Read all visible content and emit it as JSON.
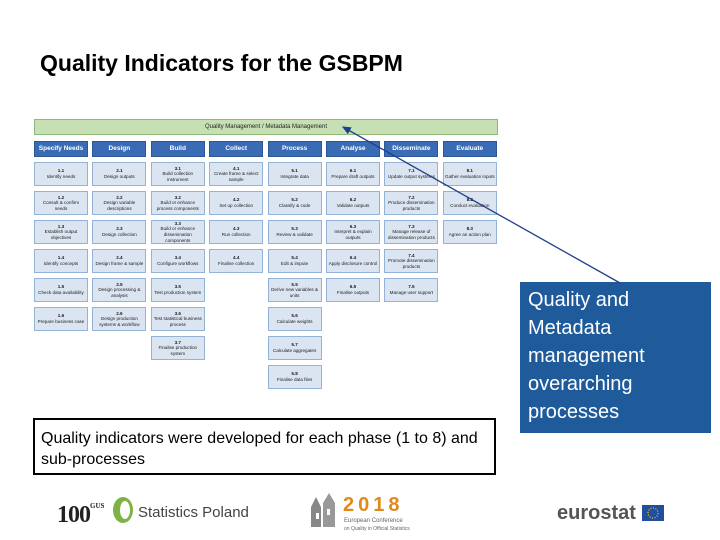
{
  "title": "Quality Indicators for the GSBPM",
  "gsbpm": {
    "overarching_label": "Quality Management / Metadata Management",
    "phases": [
      {
        "name": "Specify Needs",
        "processes": [
          {
            "id": "1.1",
            "label": "Identify needs"
          },
          {
            "id": "1.2",
            "label": "Consult & confirm needs"
          },
          {
            "id": "1.3",
            "label": "Establish output objectives"
          },
          {
            "id": "1.4",
            "label": "Identify concepts"
          },
          {
            "id": "1.5",
            "label": "Check data availability"
          },
          {
            "id": "1.6",
            "label": "Prepare business case"
          }
        ]
      },
      {
        "name": "Design",
        "processes": [
          {
            "id": "2.1",
            "label": "Design outputs"
          },
          {
            "id": "2.2",
            "label": "Design variable descriptions"
          },
          {
            "id": "2.3",
            "label": "Design collection"
          },
          {
            "id": "2.4",
            "label": "Design frame & sample"
          },
          {
            "id": "2.5",
            "label": "Design processing & analysis"
          },
          {
            "id": "2.6",
            "label": "Design production systems & workflow"
          }
        ]
      },
      {
        "name": "Build",
        "processes": [
          {
            "id": "3.1",
            "label": "Build collection instrument"
          },
          {
            "id": "3.2",
            "label": "Build or enhance process components"
          },
          {
            "id": "3.3",
            "label": "Build or enhance dissemination components"
          },
          {
            "id": "3.4",
            "label": "Configure workflows"
          },
          {
            "id": "3.5",
            "label": "Test production system"
          },
          {
            "id": "3.6",
            "label": "Test statistical business process"
          },
          {
            "id": "3.7",
            "label": "Finalise production system"
          }
        ]
      },
      {
        "name": "Collect",
        "processes": [
          {
            "id": "4.1",
            "label": "Create frame & select sample"
          },
          {
            "id": "4.2",
            "label": "Set up collection"
          },
          {
            "id": "4.3",
            "label": "Run collection"
          },
          {
            "id": "4.4",
            "label": "Finalise collection"
          }
        ]
      },
      {
        "name": "Process",
        "processes": [
          {
            "id": "5.1",
            "label": "Integrate data"
          },
          {
            "id": "5.2",
            "label": "Classify & code"
          },
          {
            "id": "5.3",
            "label": "Review & validate"
          },
          {
            "id": "5.4",
            "label": "Edit & impute"
          },
          {
            "id": "5.5",
            "label": "Derive new variables & units"
          },
          {
            "id": "5.6",
            "label": "Calculate weights"
          },
          {
            "id": "5.7",
            "label": "Calculate aggregates"
          },
          {
            "id": "5.8",
            "label": "Finalise data files"
          }
        ]
      },
      {
        "name": "Analyse",
        "processes": [
          {
            "id": "6.1",
            "label": "Prepare draft outputs"
          },
          {
            "id": "6.2",
            "label": "Validate outputs"
          },
          {
            "id": "6.3",
            "label": "Interpret & explain outputs"
          },
          {
            "id": "6.4",
            "label": "Apply disclosure control"
          },
          {
            "id": "6.5",
            "label": "Finalise outputs"
          }
        ]
      },
      {
        "name": "Disseminate",
        "processes": [
          {
            "id": "7.1",
            "label": "Update output systems"
          },
          {
            "id": "7.2",
            "label": "Produce dissemination products"
          },
          {
            "id": "7.3",
            "label": "Manage release of dissemination products"
          },
          {
            "id": "7.4",
            "label": "Promote dissemination products"
          },
          {
            "id": "7.5",
            "label": "Manage user support"
          }
        ]
      },
      {
        "name": "Evaluate",
        "processes": [
          {
            "id": "8.1",
            "label": "Gather evaluation inputs"
          },
          {
            "id": "8.2",
            "label": "Conduct evaluation"
          },
          {
            "id": "8.3",
            "label": "Agree an action plan"
          }
        ]
      }
    ]
  },
  "caption": "Quality indicators were developed for each phase (1 to 8) and sub-processes",
  "callout": "Quality and\nMetadata\nmanagement\noverarching\nprocesses",
  "footer": {
    "centenary_logo": "100",
    "centenary_sub": "GUS",
    "statistics_poland": "Statistics Poland",
    "conference_year": "2018",
    "conference_name": "European Conference",
    "conference_sub": "on Quality in Official Statistics",
    "eurostat": "eurostat"
  },
  "colors": {
    "phase_header": "#3a6cb5",
    "process_box": "#dbe5f1",
    "overarching_bar": "#c6e0b4",
    "callout_bg": "#1f5b9a",
    "arrow": "#1f3f8a"
  }
}
